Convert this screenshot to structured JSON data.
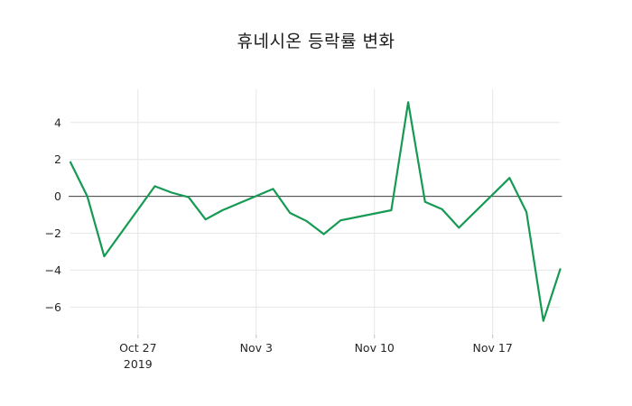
{
  "chart_data": {
    "type": "line",
    "title": "휴네시온 등락률 변화",
    "xlabel": "",
    "ylabel": "",
    "x": [
      "2019-10-23",
      "2019-10-24",
      "2019-10-25",
      "2019-10-28",
      "2019-10-29",
      "2019-10-30",
      "2019-10-31",
      "2019-11-01",
      "2019-11-04",
      "2019-11-05",
      "2019-11-06",
      "2019-11-07",
      "2019-11-08",
      "2019-11-11",
      "2019-11-12",
      "2019-11-13",
      "2019-11-14",
      "2019-11-15",
      "2019-11-18",
      "2019-11-19",
      "2019-11-20",
      "2019-11-21"
    ],
    "values": [
      1.85,
      0.0,
      -3.25,
      0.55,
      0.2,
      -0.05,
      -1.25,
      -0.75,
      0.4,
      -0.9,
      -1.35,
      -2.05,
      -1.3,
      -0.75,
      5.1,
      -0.3,
      -0.7,
      -1.7,
      1.0,
      -0.85,
      -6.75,
      -3.95
    ],
    "xticks": [
      {
        "date": "2019-10-27",
        "label": "Oct 27",
        "sublabel": "2019"
      },
      {
        "date": "2019-11-03",
        "label": "Nov 3",
        "sublabel": ""
      },
      {
        "date": "2019-11-10",
        "label": "Nov 10",
        "sublabel": ""
      },
      {
        "date": "2019-11-17",
        "label": "Nov 17",
        "sublabel": ""
      }
    ],
    "yticks": [
      4,
      2,
      0,
      -2,
      -4,
      -6
    ],
    "ytick_labels": [
      "4",
      "2",
      "0",
      "−2",
      "−4",
      "−6"
    ],
    "ylim": [
      -7.5,
      5.8
    ],
    "grid": true,
    "legend": false,
    "zero_line": true,
    "colors": {
      "line": "#169a53",
      "zero_line": "#404040",
      "grid": "#e6e6e6",
      "tick_mark": "#c2c2c2",
      "tick_text": "#262626",
      "title_text": "#1a1a1a"
    }
  }
}
